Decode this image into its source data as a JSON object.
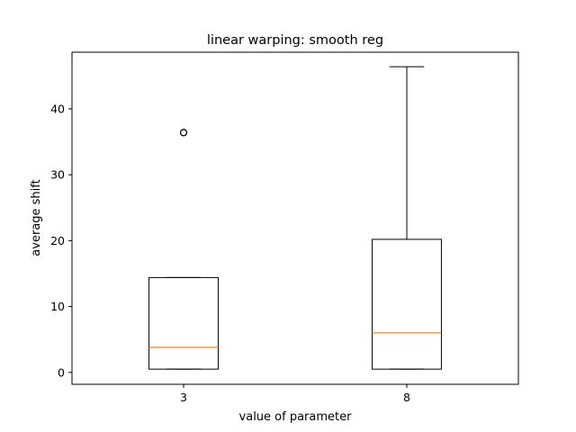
{
  "chart_data": {
    "type": "box",
    "title": "linear warping: smooth reg",
    "xlabel": "value of parameter",
    "ylabel": "average shift",
    "ylim": [
      -1.8,
      48.6
    ],
    "yticks": [
      0,
      10,
      20,
      30,
      40
    ],
    "grid": false,
    "categories": [
      "3",
      "8"
    ],
    "boxes": [
      {
        "category": "3",
        "whisker_low": 0.5,
        "q1": 0.5,
        "median": 3.8,
        "q3": 14.4,
        "whisker_high": 14.4,
        "outliers": [
          36.4
        ]
      },
      {
        "category": "8",
        "whisker_low": 0.5,
        "q1": 0.5,
        "median": 6.0,
        "q3": 20.2,
        "whisker_high": 46.4,
        "outliers": []
      }
    ],
    "colors": {
      "box": "#000000",
      "median": "#ff7f0e",
      "outlier": "#000000"
    }
  }
}
